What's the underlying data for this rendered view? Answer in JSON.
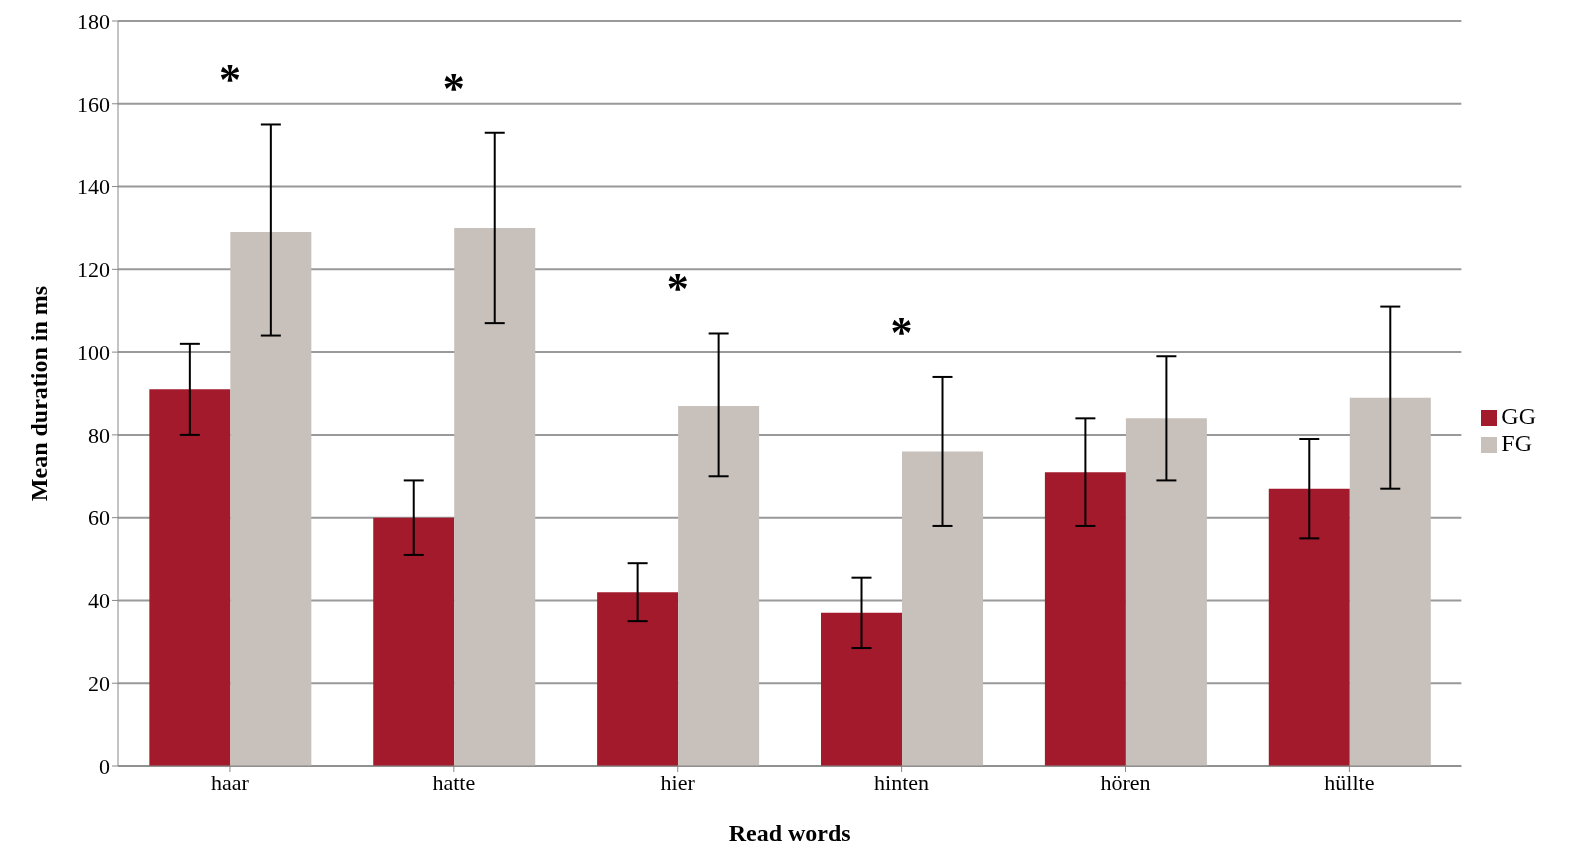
{
  "chart_data": {
    "type": "bar",
    "xlabel": "Read words",
    "ylabel": "Mean duration in ms",
    "categories": [
      "haar",
      "hatte",
      "hier",
      "hinten",
      "hören",
      "hüllte"
    ],
    "series": [
      {
        "name": "GG",
        "color": "#a31a2c",
        "values": [
          91,
          60,
          42,
          37,
          71,
          67
        ],
        "errors": [
          [
            80,
            102
          ],
          [
            51,
            69
          ],
          [
            35,
            49
          ],
          [
            28.5,
            45.5
          ],
          [
            58,
            84
          ],
          [
            55,
            79
          ]
        ]
      },
      {
        "name": "FG",
        "color": "#c8c0ba",
        "values": [
          129,
          130,
          87,
          76,
          84,
          89
        ],
        "errors": [
          [
            104,
            155
          ],
          [
            107,
            153
          ],
          [
            70,
            104.5
          ],
          [
            58,
            94
          ],
          [
            69,
            99
          ],
          [
            67,
            111
          ]
        ]
      }
    ],
    "ylim": [
      0,
      180
    ],
    "yticks": [
      0,
      20,
      40,
      60,
      80,
      100,
      120,
      140,
      160,
      180
    ],
    "grid": "y",
    "legend": "right",
    "annotations": [
      "*",
      "*",
      "*",
      "*"
    ]
  }
}
